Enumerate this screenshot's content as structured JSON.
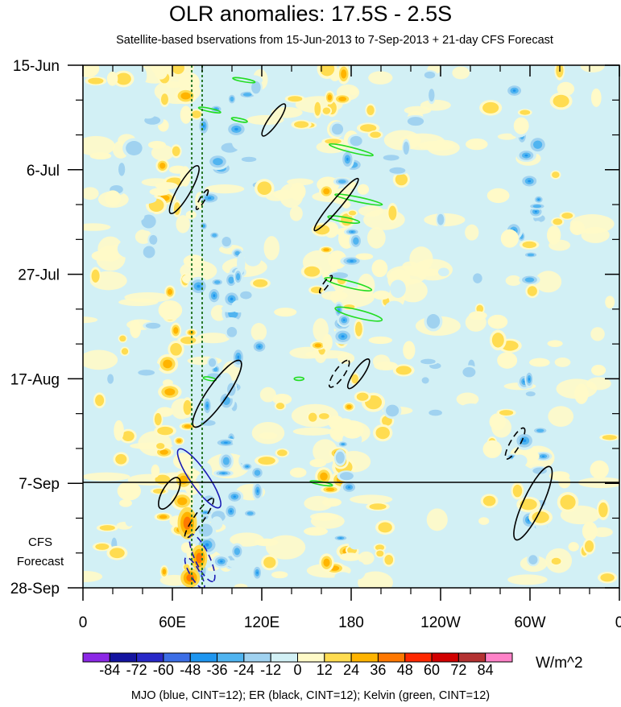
{
  "chart_data": {
    "type": "heatmap",
    "title": "OLR anomalies: 17.5S - 2.5S",
    "subtitle": "Satellite-based bservations from 15-Jun-2013 to 7-Sep-2013 + 21-day CFS Forecast",
    "x_axis": {
      "ticks": [
        {
          "lon": 0,
          "label": "0"
        },
        {
          "lon": 60,
          "label": "60E"
        },
        {
          "lon": 120,
          "label": "120E"
        },
        {
          "lon": 180,
          "label": "180"
        },
        {
          "lon": 240,
          "label": "120W"
        },
        {
          "lon": 300,
          "label": "60W"
        },
        {
          "lon": 360,
          "label": "0"
        }
      ],
      "range": [
        0,
        360
      ]
    },
    "y_axis": {
      "ticks": [
        {
          "day": 0,
          "label": "15-Jun"
        },
        {
          "day": 21,
          "label": "6-Jul"
        },
        {
          "day": 42,
          "label": "27-Jul"
        },
        {
          "day": 63,
          "label": "17-Aug"
        },
        {
          "day": 84,
          "label": "7-Sep"
        },
        {
          "day": 105,
          "label": "28-Sep"
        }
      ],
      "range_days": [
        0,
        105
      ],
      "inverted": true
    },
    "forecast_start": "7-Sep",
    "forecast_label": [
      "CFS",
      "Forecast"
    ],
    "colorbar": {
      "levels": [
        "-84",
        "-72",
        "-60",
        "-48",
        "-36",
        "-24",
        "-12",
        "0",
        "12",
        "24",
        "36",
        "48",
        "60",
        "72",
        "84"
      ],
      "colors": [
        "#8c28e6",
        "#1414a0",
        "#2828c8",
        "#3c6ee6",
        "#1e96f0",
        "#50b4f0",
        "#a0d2f0",
        "#d2f0f5",
        "#fffac8",
        "#ffdc50",
        "#ffb400",
        "#ff7800",
        "#ff2800",
        "#d20000",
        "#b43232",
        "#ff82c8"
      ],
      "units": "W/m^2"
    },
    "reference_lines": [
      {
        "lon": 73
      },
      {
        "lon": 80
      }
    ],
    "footnote": "MJO (blue, CINT=12); ER (black, CINT=12); Kelvin (green, CINT=12)"
  }
}
